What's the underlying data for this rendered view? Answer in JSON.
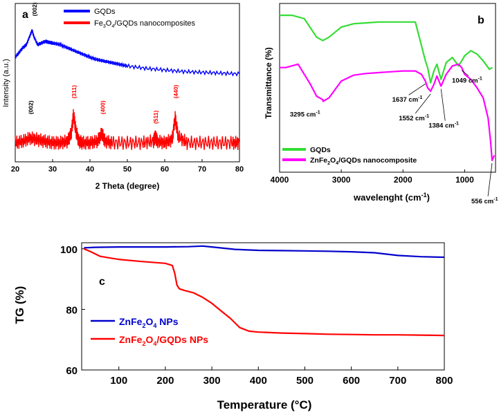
{
  "chart_data": [
    {
      "panel_label": "a",
      "type": "line",
      "xlabel": "2 Theta (degree)",
      "ylabel": "Intensity (a.u.)",
      "xlim": [
        20,
        80
      ],
      "xticks": [
        20,
        30,
        40,
        50,
        60,
        70,
        80
      ],
      "grid": false,
      "legend_position": "top-center",
      "series": [
        {
          "name": "GQDs",
          "color": "#0000ff",
          "x": [
            20,
            21,
            22,
            23,
            24,
            24.5,
            25,
            26,
            27,
            28,
            29,
            30,
            32,
            34,
            36,
            38,
            40,
            42,
            44,
            46,
            48,
            50,
            55,
            60,
            65,
            70,
            75,
            80
          ],
          "y": [
            0.66,
            0.69,
            0.72,
            0.74,
            0.8,
            0.83,
            0.79,
            0.74,
            0.75,
            0.76,
            0.755,
            0.75,
            0.74,
            0.72,
            0.7,
            0.68,
            0.66,
            0.645,
            0.635,
            0.625,
            0.615,
            0.605,
            0.59,
            0.58,
            0.57,
            0.565,
            0.56,
            0.555
          ]
        },
        {
          "name": "Fe3O4/GQDs nanocomposites",
          "legend_subscripts": [
            "3",
            "4"
          ],
          "color": "#ff0000",
          "x": [
            20,
            22,
            24,
            26,
            28,
            30,
            32,
            34,
            35,
            35.6,
            36.2,
            37,
            38,
            40,
            42,
            43.2,
            44,
            46,
            50,
            54,
            57,
            57.5,
            58,
            60,
            62,
            62.8,
            63.6,
            66,
            70,
            74,
            78,
            80
          ],
          "y": [
            0.12,
            0.13,
            0.15,
            0.14,
            0.13,
            0.12,
            0.12,
            0.13,
            0.18,
            0.3,
            0.2,
            0.13,
            0.12,
            0.12,
            0.13,
            0.18,
            0.13,
            0.12,
            0.12,
            0.12,
            0.13,
            0.16,
            0.13,
            0.12,
            0.14,
            0.28,
            0.16,
            0.12,
            0.12,
            0.12,
            0.12,
            0.12
          ]
        }
      ],
      "annotations": [
        {
          "text": "(002)",
          "x": 25,
          "color": "#000000"
        },
        {
          "text": "(002)",
          "x": 24,
          "color": "#000000"
        },
        {
          "text": "(311)",
          "x": 35.6,
          "color": "#ff0000"
        },
        {
          "text": "(400)",
          "x": 43.2,
          "color": "#ff0000"
        },
        {
          "text": "(511)",
          "x": 57.4,
          "color": "#ff0000"
        },
        {
          "text": "(440)",
          "x": 62.8,
          "color": "#ff0000"
        }
      ]
    },
    {
      "panel_label": "b",
      "type": "line",
      "xlabel": "wavelenght  (cm-1)",
      "ylabel": "Transmittance (%)",
      "xlim": [
        4000,
        500
      ],
      "xticks": [
        4000,
        3000,
        2000,
        1000
      ],
      "grid": false,
      "legend_position": "bottom-left",
      "series": [
        {
          "name": "GQDs",
          "color": "#33dd33",
          "x": [
            4000,
            3800,
            3600,
            3400,
            3300,
            3200,
            3000,
            2800,
            2600,
            2400,
            2200,
            2000,
            1800,
            1700,
            1637,
            1600,
            1552,
            1500,
            1450,
            1384,
            1300,
            1200,
            1100,
            1049,
            1000,
            900,
            800,
            700,
            600,
            550
          ],
          "y": [
            0.93,
            0.93,
            0.91,
            0.8,
            0.78,
            0.8,
            0.86,
            0.88,
            0.885,
            0.89,
            0.89,
            0.89,
            0.89,
            0.75,
            0.66,
            0.62,
            0.53,
            0.6,
            0.64,
            0.55,
            0.65,
            0.68,
            0.63,
            0.66,
            0.69,
            0.72,
            0.7,
            0.66,
            0.61,
            0.62
          ]
        },
        {
          "name": "ZnFe2O4/GQDs nanocomposite",
          "legend_subscripts": [
            "2",
            "4"
          ],
          "color": "#ff00ff",
          "x": [
            4000,
            3900,
            3700,
            3500,
            3400,
            3300,
            3295,
            3200,
            3000,
            2800,
            2600,
            2400,
            2200,
            2000,
            1800,
            1700,
            1637,
            1600,
            1552,
            1500,
            1450,
            1384,
            1300,
            1200,
            1100,
            1049,
            1000,
            900,
            800,
            700,
            620,
            580,
            556,
            520
          ],
          "y": [
            0.62,
            0.62,
            0.64,
            0.52,
            0.45,
            0.43,
            0.42,
            0.44,
            0.54,
            0.575,
            0.585,
            0.59,
            0.595,
            0.6,
            0.6,
            0.58,
            0.54,
            0.5,
            0.48,
            0.52,
            0.57,
            0.51,
            0.58,
            0.63,
            0.64,
            0.62,
            0.58,
            0.55,
            0.5,
            0.44,
            0.32,
            0.18,
            0.07,
            0.1
          ]
        }
      ],
      "annotations": [
        {
          "text": "3295 cm",
          "superscript": "-1",
          "x": 3295
        },
        {
          "text": "1637 cm",
          "superscript": "-1",
          "x": 1637
        },
        {
          "text": "1552 cm",
          "superscript": "-1",
          "x": 1552
        },
        {
          "text": "1384 cm",
          "superscript": "-1",
          "x": 1384
        },
        {
          "text": "1049 cm",
          "superscript": "-1",
          "x": 1049
        },
        {
          "text": "556 cm",
          "superscript": "-1",
          "x": 556
        }
      ]
    },
    {
      "panel_label": "c",
      "type": "line",
      "xlabel": "Temperature (°C)",
      "ylabel": "TG (%)",
      "xlim": [
        20,
        800
      ],
      "ylim": [
        60,
        102
      ],
      "xticks": [
        100,
        200,
        300,
        400,
        500,
        600,
        700,
        800
      ],
      "yticks": [
        60,
        80,
        100
      ],
      "grid": false,
      "legend_position": "center-left",
      "series": [
        {
          "name": "ZnFe2O4 NPs",
          "legend_subscripts": [
            "2",
            "4"
          ],
          "color": "#0000cc",
          "x": [
            25,
            50,
            100,
            150,
            200,
            250,
            280,
            300,
            350,
            400,
            450,
            500,
            550,
            600,
            650,
            700,
            750,
            800
          ],
          "y": [
            100.3,
            100.5,
            100.6,
            100.6,
            100.6,
            100.7,
            100.9,
            100.6,
            99.8,
            99.5,
            99.4,
            99.3,
            99.2,
            99.0,
            98.7,
            97.8,
            97.4,
            97.2
          ]
        },
        {
          "name": "ZnFe2O4/GQDs NPs",
          "legend_subscripts": [
            "2",
            "4"
          ],
          "color": "#ff0000",
          "x": [
            25,
            40,
            60,
            80,
            100,
            150,
            200,
            215,
            220,
            225,
            230,
            240,
            260,
            280,
            300,
            320,
            340,
            350,
            360,
            380,
            400,
            450,
            500,
            550,
            600,
            650,
            700,
            750,
            800
          ],
          "y": [
            100.0,
            99.0,
            97.5,
            97.0,
            96.5,
            95.8,
            95.2,
            94.5,
            92.0,
            88.0,
            86.8,
            86.3,
            85.5,
            84.0,
            82.0,
            79.5,
            77.0,
            75.5,
            74.0,
            72.8,
            72.5,
            72.2,
            72.0,
            71.8,
            71.7,
            71.6,
            71.6,
            71.5,
            71.4
          ]
        }
      ]
    }
  ]
}
